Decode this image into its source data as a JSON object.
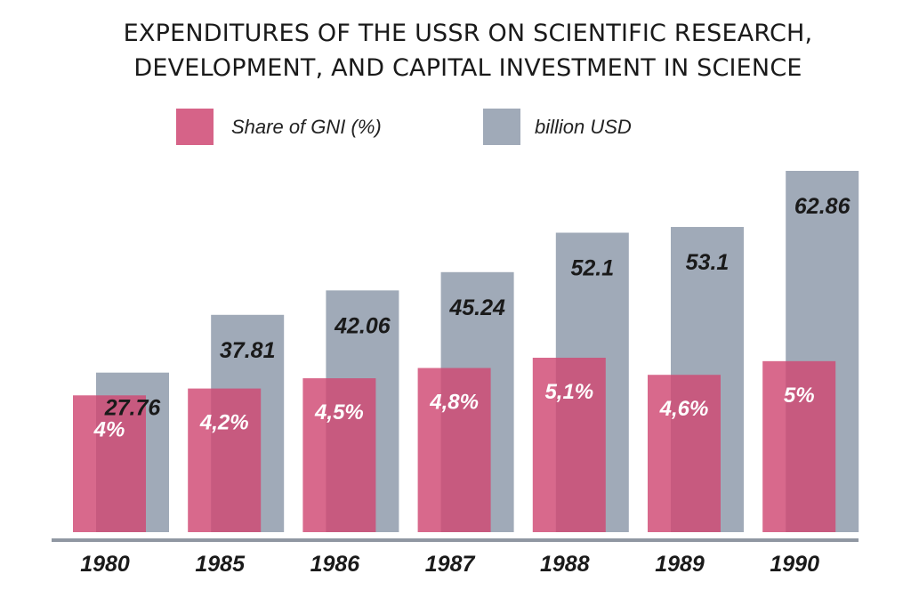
{
  "title_line1": "EXPENDITURES OF THE USSR ON SCIENTIFIC RESEARCH,",
  "title_line2": "DEVELOPMENT, AND CAPITAL INVESTMENT IN SCIENCE",
  "chart_data": {
    "type": "bar",
    "title": "EXPENDITURES OF THE USSR ON SCIENTIFIC RESEARCH, DEVELOPMENT, AND CAPITAL INVESTMENT IN SCIENCE",
    "categories": [
      "1980",
      "1985",
      "1986",
      "1987",
      "1988",
      "1989",
      "1990"
    ],
    "series": [
      {
        "name": "Share of GNI (%)",
        "color": "#cf4873",
        "values": [
          4,
          4.2,
          4.5,
          4.8,
          5.1,
          4.6,
          5
        ],
        "labels": [
          "4%",
          "4,2%",
          "4,5%",
          "4,8%",
          "5,1%",
          "4,6%",
          "5%"
        ]
      },
      {
        "name": "billion USD",
        "color": "#a0aab8",
        "values": [
          27.76,
          37.81,
          42.06,
          45.24,
          52.1,
          53.1,
          62.86
        ],
        "labels": [
          "27.76",
          "37.81",
          "42.06",
          "45.24",
          "52.1",
          "53.1",
          "62.86"
        ]
      }
    ],
    "legend_position": "top",
    "grid": false
  }
}
